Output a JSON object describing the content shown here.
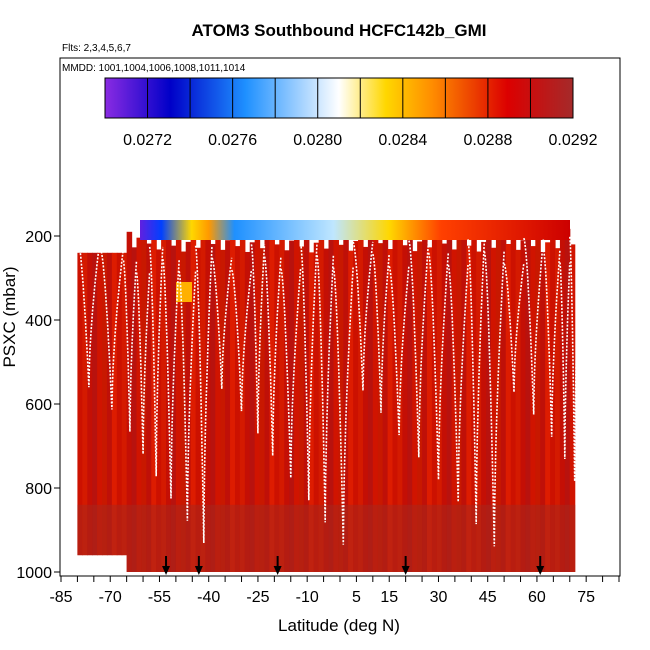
{
  "chart_data": {
    "type": "heatmap",
    "title": "ATOM3 Southbound HCFC142b_GMI",
    "flights_note": "Flts: 2,3,4,5,6,7",
    "dates_note": "MMDD: 1001,1004,1006,1008,1011,1014",
    "xlabel": "Latitude (deg N)",
    "ylabel": "PSXC (mbar)",
    "xlim": [
      -85,
      85
    ],
    "ylim": [
      1000,
      100
    ],
    "x_ticks": [
      -85,
      -70,
      -55,
      -40,
      -25,
      -10,
      5,
      15,
      30,
      45,
      60,
      75
    ],
    "y_ticks": [
      200,
      400,
      600,
      800,
      1000
    ],
    "colorbar": {
      "min": 0.027,
      "max": 0.0292,
      "ticks": [
        "0.0272",
        "0.0276",
        "0.0280",
        "0.0284",
        "0.0288",
        "0.0292"
      ],
      "tick_values": [
        0.0272,
        0.0276,
        0.028,
        0.0284,
        0.0288,
        0.0292
      ],
      "colors": [
        "#8a2be2",
        "#0000c8",
        "#1e90ff",
        "#ffffff",
        "#ffd700",
        "#ff8c00",
        "#dc0000",
        "#a52a2a"
      ]
    },
    "arrows_lat": [
      -53,
      -43,
      -19,
      20,
      61
    ],
    "profile_lats": [
      -80,
      -73,
      -66,
      -62,
      -58,
      -54,
      -49,
      -44,
      -39,
      -33,
      -27,
      -23,
      -18,
      -12,
      -7,
      -2,
      4,
      10,
      15,
      21,
      27,
      33,
      39,
      44,
      50,
      56,
      62,
      67,
      70
    ],
    "coverage_lat": [
      -80,
      71
    ],
    "top_pressure": 180,
    "bottom_pressure": 1000
  }
}
